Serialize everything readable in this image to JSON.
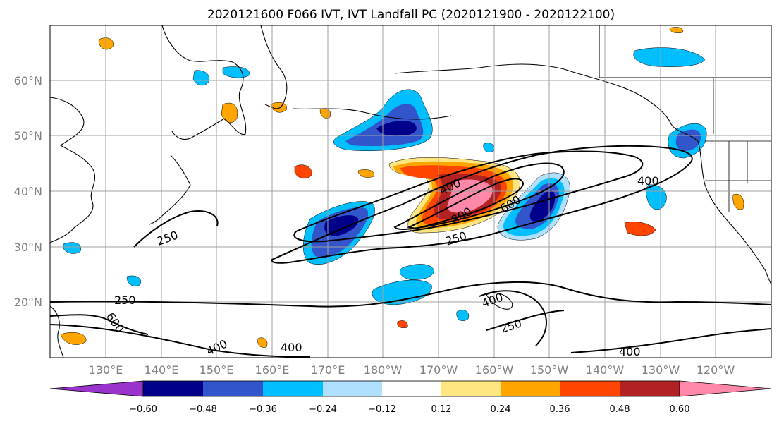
{
  "map": {
    "title": "2020121600 F066 IVT, IVT Landfall PC (2020121900 - 2020122100)",
    "lat_labels": [
      "60°N",
      "50°N",
      "40°N",
      "30°N",
      "20°N"
    ],
    "lon_labels": [
      "130°E",
      "140°E",
      "150°E",
      "160°E",
      "170°E",
      "180°W",
      "170°W",
      "160°W",
      "150°W",
      "140°W",
      "130°W",
      "120°W"
    ],
    "contour_labels": [
      "400",
      "800",
      "600",
      "250",
      "400",
      "250",
      "250",
      "600",
      "400",
      "400",
      "250",
      "400",
      "400"
    ],
    "colorbar": {
      "tick_labels": [
        "−0.60",
        "−0.48",
        "−0.36",
        "−0.24",
        "−0.12",
        "0.12",
        "0.24",
        "0.36",
        "0.48",
        "0.60"
      ],
      "colors": [
        "#9933cc",
        "#00008b",
        "#3355cc",
        "#00bfff",
        "#b0e0ff",
        "#ffffff",
        "#ffe680",
        "#ffa500",
        "#ff4500",
        "#b22222",
        "#ff88aa"
      ]
    }
  }
}
